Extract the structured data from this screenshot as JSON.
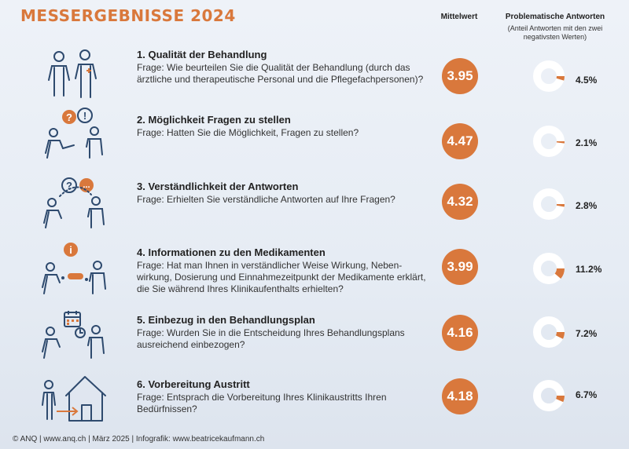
{
  "title": "MESSERGEBNISSE 2024",
  "headers": {
    "mean": "Mittelwert",
    "problematic": "Problematische Antworten",
    "problematic_note": "(Anteil Antworten mit den zwei negativsten Werten)"
  },
  "colors": {
    "accent": "#d9783c",
    "icon_line": "#2e4a6e",
    "donut_bg": "#ffffff"
  },
  "items": [
    {
      "title": "1. Qualität der Behandlung",
      "question": "Frage: Wie beurteilen Sie die Qualität der Behandlung (durch das ärztliche und therapeutische Personal und die Pflegefachpersonen)?",
      "mean": "3.95",
      "problematic_label": "4.5%",
      "problematic_value": 4.5,
      "icon": "two-people-icon"
    },
    {
      "title": "2. Möglichkeit Fragen zu stellen",
      "question": "Frage: Hatten Sie die Möglichkeit, Fragen zu stellen?",
      "mean": "4.47",
      "problematic_label": "2.1%",
      "problematic_value": 2.1,
      "icon": "question-bubble-icon",
      "bubble_1": "?",
      "bubble_2": "!"
    },
    {
      "title": "3. Verständlichkeit der Antworten",
      "question": "Frage: Erhielten Sie verständliche Antworten auf Ihre Fragen?",
      "mean": "4.32",
      "problematic_label": "2.8%",
      "problematic_value": 2.8,
      "icon": "answer-bubble-icon",
      "bubble_1": "?",
      "bubble_2": "..."
    },
    {
      "title": "4. Informationen zu den Medikamenten",
      "question": "Frage: Hat man Ihnen in verständlicher Weise Wirkung, Neben­wirkung, Dosierung und Einnahmezeitpunkt der Medikamente erklärt, die Sie während Ihres Klinikaufenthalts erhielten?",
      "mean": "3.99",
      "problematic_label": "11.2%",
      "problematic_value": 11.2,
      "icon": "medication-info-icon",
      "bubble_1": "i"
    },
    {
      "title": "5. Einbezug in den Behandlungsplan",
      "question": "Frage: Wurden Sie in die Entscheidung Ihres Behandlungsplans ausreichend einbezogen?",
      "mean": "4.16",
      "problematic_label": "7.2%",
      "problematic_value": 7.2,
      "icon": "calendar-plan-icon"
    },
    {
      "title": "6. Vorbereitung Austritt",
      "question": "Frage: Entsprach die Vorbereitung Ihres Klinikaustritts Ihren Bedürfnissen?",
      "mean": "4.18",
      "problematic_label": "6.7%",
      "problematic_value": 6.7,
      "icon": "house-exit-icon"
    }
  ],
  "footer": "© ANQ | www.anq.ch | März 2025 | Infografik: www.beatricekaufmann.ch"
}
